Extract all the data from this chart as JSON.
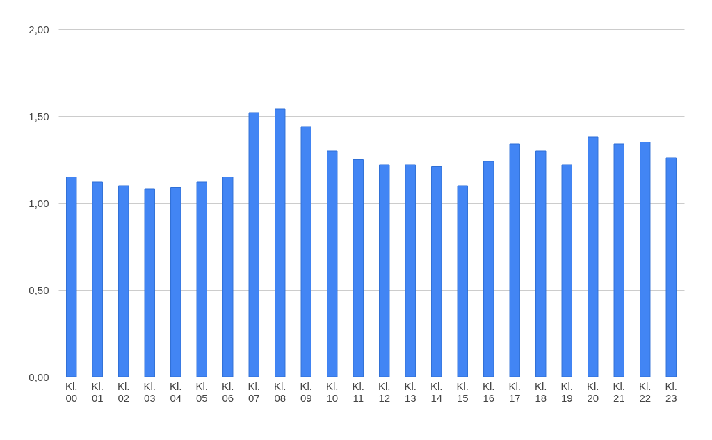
{
  "chart_data": {
    "type": "bar",
    "categories": [
      "Kl. 00",
      "Kl. 01",
      "Kl. 02",
      "Kl. 03",
      "Kl. 04",
      "Kl. 05",
      "Kl. 06",
      "Kl. 07",
      "Kl. 08",
      "Kl. 09",
      "Kl. 10",
      "Kl. 11",
      "Kl. 12",
      "Kl. 13",
      "Kl. 14",
      "Kl. 15",
      "Kl. 16",
      "Kl. 17",
      "Kl. 18",
      "Kl. 19",
      "Kl. 20",
      "Kl. 21",
      "Kl. 22",
      "Kl. 23"
    ],
    "values": [
      1.15,
      1.12,
      1.1,
      1.08,
      1.09,
      1.12,
      1.15,
      1.52,
      1.54,
      1.44,
      1.3,
      1.25,
      1.22,
      1.22,
      1.21,
      1.1,
      1.24,
      1.34,
      1.3,
      1.22,
      1.38,
      1.34,
      1.35,
      1.26
    ],
    "color": "#4285f4",
    "ylim": [
      0,
      2
    ],
    "yticks": [
      {
        "value": 0,
        "label": "0,00"
      },
      {
        "value": 0.5,
        "label": "0,50"
      },
      {
        "value": 1,
        "label": "1,00"
      },
      {
        "value": 1.5,
        "label": "1,50"
      },
      {
        "value": 2,
        "label": "2,00"
      }
    ],
    "grid": "y"
  }
}
